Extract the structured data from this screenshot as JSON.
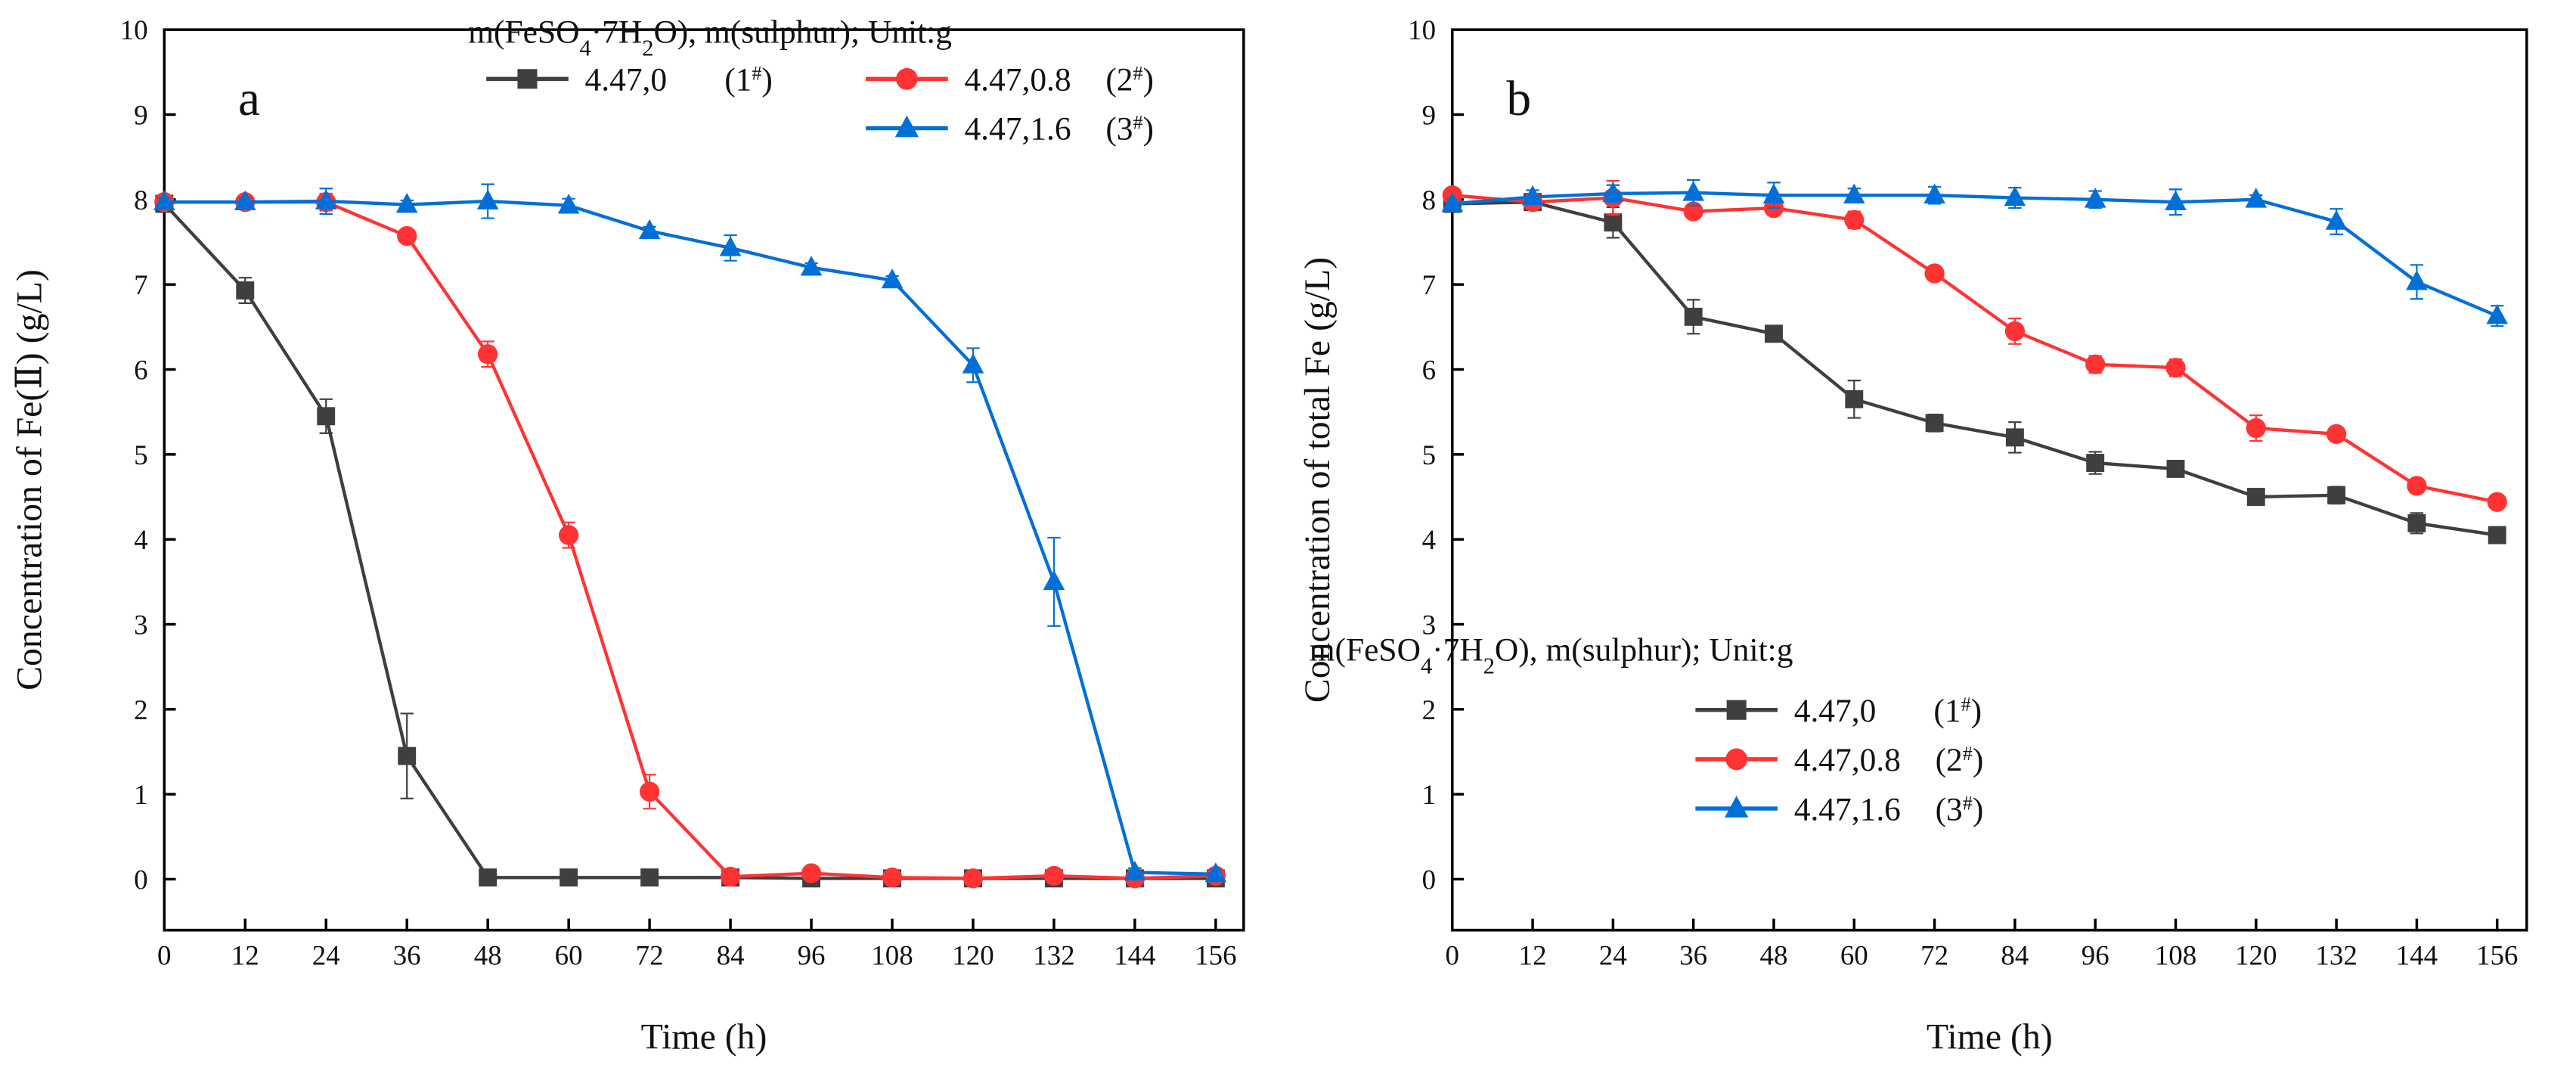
{
  "chart_data": [
    {
      "type": "line",
      "panel_label": "a",
      "xlabel": "Time (h)",
      "ylabel": "Concentration of Fe(Ⅱ) (g/L)",
      "x": [
        0,
        12,
        24,
        36,
        48,
        60,
        72,
        84,
        96,
        108,
        120,
        132,
        144,
        156
      ],
      "xticks": [
        "0",
        "12",
        "24",
        "36",
        "48",
        "60",
        "72",
        "84",
        "96",
        "108",
        "120",
        "132",
        "144",
        "156"
      ],
      "yticks": [
        "0",
        "1",
        "2",
        "3",
        "4",
        "5",
        "6",
        "7",
        "8",
        "9",
        "10"
      ],
      "xlim": [
        0,
        162
      ],
      "ylim": [
        -0.6,
        10
      ],
      "grid": false,
      "legend_placement": "top-right",
      "legend_title_parts": [
        {
          "t": "m(FeSO"
        },
        {
          "t": "4",
          "sub": true
        },
        {
          "t": "·7H"
        },
        {
          "t": "2",
          "sub": true
        },
        {
          "t": "O), m(sulphur); Unit:g"
        }
      ],
      "series": [
        {
          "name": "4.47,0",
          "tag": "1",
          "tag_sup": "#",
          "color": "#3f3f3f",
          "marker": "square",
          "values": [
            7.95,
            6.93,
            5.45,
            1.45,
            0.02,
            0.02,
            0.02,
            0.02,
            0.01,
            0.01,
            0.01,
            0.01,
            0.01,
            0.01
          ],
          "errors": [
            0.05,
            0.15,
            0.2,
            0.5,
            0.02,
            0.02,
            0.02,
            0.02,
            0.02,
            0.02,
            0.02,
            0.02,
            0.02,
            0.02
          ]
        },
        {
          "name": "4.47,0.8",
          "tag": "2",
          "tag_sup": "#",
          "color": "#ff3333",
          "marker": "circle",
          "values": [
            7.97,
            7.97,
            7.97,
            7.57,
            6.18,
            4.05,
            1.03,
            0.03,
            0.07,
            0.02,
            0.01,
            0.04,
            0.01,
            0.04
          ],
          "errors": [
            0.05,
            0.05,
            0.1,
            0.05,
            0.15,
            0.15,
            0.2,
            0.03,
            0.03,
            0.03,
            0.03,
            0.03,
            0.03,
            0.03
          ]
        },
        {
          "name": "4.47,1.6",
          "tag": "3",
          "tag_sup": "#",
          "color": "#0070d8",
          "marker": "triangle",
          "values": [
            7.97,
            7.97,
            7.98,
            7.94,
            7.98,
            7.93,
            7.63,
            7.43,
            7.2,
            7.05,
            6.05,
            3.5,
            0.08,
            0.06
          ],
          "errors": [
            0.05,
            0.05,
            0.15,
            0.05,
            0.2,
            0.08,
            0.05,
            0.15,
            0.05,
            0.05,
            0.2,
            0.52,
            0.05,
            0.05
          ]
        }
      ]
    },
    {
      "type": "line",
      "panel_label": "b",
      "xlabel": "Time (h)",
      "ylabel": "Concentration of total Fe (g/L)",
      "x": [
        0,
        12,
        24,
        36,
        48,
        60,
        72,
        84,
        96,
        108,
        120,
        132,
        144,
        156
      ],
      "xticks": [
        "0",
        "12",
        "24",
        "36",
        "48",
        "60",
        "72",
        "84",
        "96",
        "108",
        "120",
        "132",
        "144",
        "156"
      ],
      "yticks": [
        "0",
        "1",
        "2",
        "3",
        "4",
        "5",
        "6",
        "7",
        "8",
        "9",
        "10"
      ],
      "xlim": [
        0,
        162
      ],
      "ylim": [
        -0.5,
        10
      ],
      "grid": false,
      "legend_placement": "bottom-left",
      "legend_title_parts": [
        {
          "t": "m(FeSO"
        },
        {
          "t": "4",
          "sub": true
        },
        {
          "t": "·7H"
        },
        {
          "t": "2",
          "sub": true
        },
        {
          "t": "O), m(sulphur); Unit:g"
        }
      ],
      "series": [
        {
          "name": "4.47,0",
          "tag": "1",
          "tag_sup": "#",
          "color": "#3f3f3f",
          "marker": "square",
          "values": [
            7.95,
            7.97,
            7.73,
            6.62,
            6.42,
            5.65,
            5.37,
            5.2,
            4.9,
            4.83,
            4.5,
            4.52,
            4.19,
            4.05
          ],
          "errors": [
            0.05,
            0.05,
            0.18,
            0.2,
            0.05,
            0.22,
            0.1,
            0.18,
            0.13,
            0.05,
            0.05,
            0.1,
            0.12,
            0.05
          ]
        },
        {
          "name": "4.47,0.8",
          "tag": "2",
          "tag_sup": "#",
          "color": "#ff3333",
          "marker": "circle",
          "values": [
            8.05,
            7.97,
            8.02,
            7.86,
            7.9,
            7.76,
            7.13,
            6.45,
            6.06,
            6.02,
            5.31,
            5.24,
            4.63,
            4.44
          ],
          "errors": [
            0.05,
            0.05,
            0.2,
            0.05,
            0.08,
            0.1,
            0.08,
            0.15,
            0.1,
            0.1,
            0.15,
            0.05,
            0.08,
            0.05
          ]
        },
        {
          "name": "4.47,1.6",
          "tag": "3",
          "tag_sup": "#",
          "color": "#0070d8",
          "marker": "triangle",
          "values": [
            7.95,
            8.03,
            8.07,
            8.08,
            8.05,
            8.05,
            8.05,
            8.02,
            8.0,
            7.97,
            8.0,
            7.74,
            7.03,
            6.63
          ],
          "errors": [
            0.05,
            0.08,
            0.1,
            0.15,
            0.15,
            0.08,
            0.1,
            0.12,
            0.1,
            0.15,
            0.05,
            0.15,
            0.2,
            0.12
          ]
        }
      ]
    }
  ]
}
